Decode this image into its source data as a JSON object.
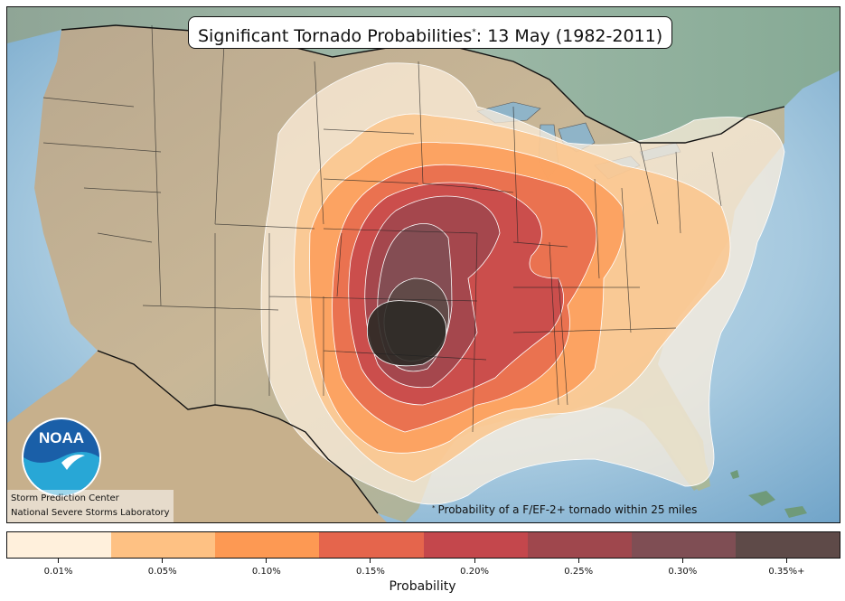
{
  "title": {
    "main": "Significant Tornado Probabilities",
    "marker": "*",
    "date": ": 13 May (1982-2011)"
  },
  "credits": {
    "line1": "Storm Prediction Center",
    "line2": "National Severe Storms Laboratory"
  },
  "logo": {
    "text": "NOAA",
    "icon": "noaa-logo-icon"
  },
  "footnote": {
    "marker": "*",
    "text": "Probability of a F/EF-2+ tornado within 25 miles"
  },
  "colorbar": {
    "label": "Probability",
    "bins": [
      {
        "label": "0.01%",
        "color": "#fff0dc"
      },
      {
        "label": "0.05%",
        "color": "#fec183"
      },
      {
        "label": "0.10%",
        "color": "#fd9953"
      },
      {
        "label": "0.15%",
        "color": "#e5654c"
      },
      {
        "label": "0.20%",
        "color": "#c4474c"
      },
      {
        "label": "0.25%",
        "color": "#9f474d"
      },
      {
        "label": "0.30%",
        "color": "#7f4e54"
      },
      {
        "label": "0.35%+",
        "color": "#5e4a48"
      }
    ]
  }
}
